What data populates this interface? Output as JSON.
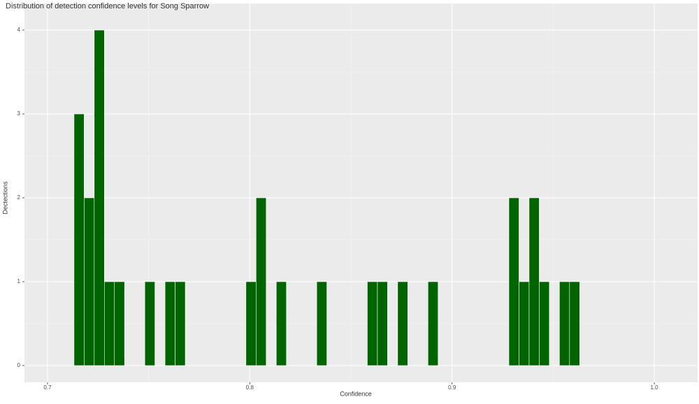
{
  "chart_data": {
    "type": "histogram",
    "title": "Distribution of detection confidence levels for Song Sparrow",
    "x_label": "Confidence",
    "y_label": "Dectections",
    "bins": [
      0.7131,
      0.7181,
      0.7231,
      0.7281,
      0.7331,
      0.7381,
      0.7431,
      0.7481,
      0.7531,
      0.7581,
      0.7631,
      0.7681,
      0.7731,
      0.7781,
      0.7831,
      0.7881,
      0.7931,
      0.7981,
      0.8031,
      0.8081,
      0.8131,
      0.8181,
      0.8231,
      0.8281,
      0.8331,
      0.8381,
      0.8431,
      0.8481,
      0.8531,
      0.8581,
      0.8631,
      0.8681,
      0.8731,
      0.8781,
      0.8831,
      0.8881,
      0.8931,
      0.8981,
      0.9031,
      0.9081,
      0.9131,
      0.9181,
      0.9231,
      0.9281,
      0.9331,
      0.9381,
      0.9431,
      0.9481,
      0.9531,
      0.9581,
      0.9631
    ],
    "values": [
      3,
      2,
      4,
      1,
      1,
      0,
      0,
      1,
      0,
      1,
      1,
      0,
      0,
      0,
      0,
      0,
      0,
      1,
      2,
      0,
      1,
      0,
      0,
      0,
      1,
      0,
      0,
      0,
      0,
      1,
      1,
      0,
      1,
      0,
      0,
      1,
      0,
      0,
      0,
      0,
      0,
      0,
      0,
      2,
      1,
      2,
      1,
      0,
      1,
      1
    ],
    "color": "#006400",
    "xlim": [
      0.6886,
      1.0214
    ],
    "xticks": [
      0.7,
      0.8,
      0.9,
      {
        "value": 1,
        "label": "1.0"
      }
    ],
    "ylim": [
      -0.2,
      4.317
    ],
    "yticks": [
      0,
      1,
      2,
      3,
      4
    ],
    "grid": true
  }
}
